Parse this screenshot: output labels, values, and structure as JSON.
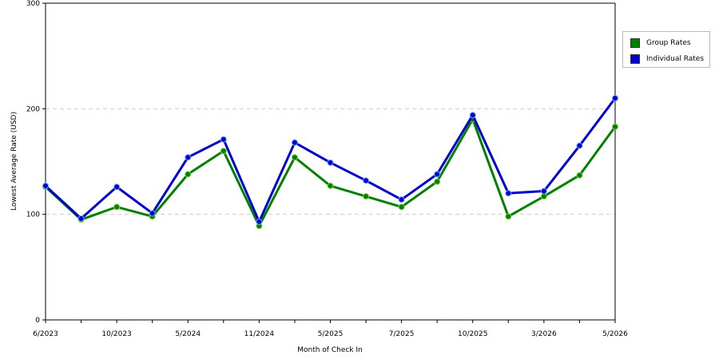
{
  "chart_data": {
    "type": "line",
    "title": "",
    "xlabel": "Month of Check In",
    "ylabel": "Lowest Average Rate (USD)",
    "ylim": [
      0,
      300
    ],
    "yticks": [
      "0",
      "100",
      "200",
      "300"
    ],
    "xtick_labels": [
      "6/2023",
      "10/2023",
      "5/2024",
      "11/2024",
      "5/2025",
      "7/2025",
      "10/2025",
      "3/2026",
      "5/2026"
    ],
    "grid": "horizontal dashed",
    "legend_position": "right",
    "series": [
      {
        "name": "Group Rates",
        "color": "#008000",
        "values": [
          126,
          95,
          107,
          98,
          138,
          160,
          89,
          154,
          127,
          117,
          107,
          131,
          190,
          98,
          117,
          137,
          183
        ]
      },
      {
        "name": "Individual Rates",
        "color": "#0000cc",
        "values": [
          127,
          96,
          126,
          101,
          154,
          171,
          93,
          168,
          149,
          132,
          114,
          138,
          194,
          120,
          122,
          165,
          210
        ]
      }
    ]
  }
}
